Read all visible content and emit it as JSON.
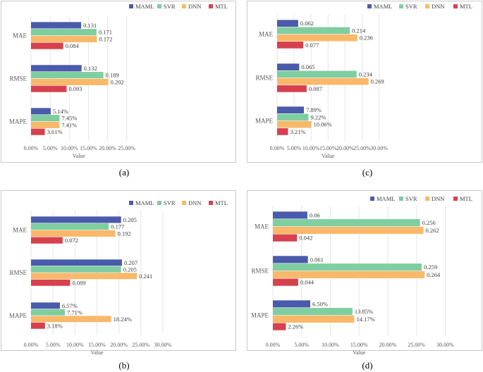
{
  "series_colors": {
    "MAML": "#4a5bab",
    "SVR": "#7fcea0",
    "DNN": "#f9b86a",
    "MTL": "#d7404d"
  },
  "chart_data": [
    {
      "type": "bar",
      "orientation": "horizontal",
      "caption": "(a)",
      "xlabel": "Value",
      "categories": [
        "MAE",
        "RMSE",
        "MAPE"
      ],
      "xlim": [
        0,
        0.25
      ],
      "ticks": [
        "0.00%",
        "5.00%",
        "10.00%",
        "15.00%",
        "20.00%",
        "25.00%"
      ],
      "series": [
        {
          "name": "MAML",
          "values": [
            0.131,
            0.132,
            0.0514
          ],
          "labels": [
            "0.131",
            "0.132",
            "5.14%"
          ]
        },
        {
          "name": "SVR",
          "values": [
            0.171,
            0.189,
            0.0745
          ],
          "labels": [
            "0.171",
            "0.189",
            "7.45%"
          ]
        },
        {
          "name": "DNN",
          "values": [
            0.172,
            0.202,
            0.0741
          ],
          "labels": [
            "0.172",
            "0.202",
            "7.41%"
          ]
        },
        {
          "name": "MTL",
          "values": [
            0.084,
            0.093,
            0.0361
          ],
          "labels": [
            "0.084",
            "0.093",
            "3.61%"
          ]
        }
      ]
    },
    {
      "type": "bar",
      "orientation": "horizontal",
      "caption": "(c)",
      "xlabel": "Value",
      "categories": [
        "MAE",
        "RMSE",
        "MAPE"
      ],
      "xlim": [
        0,
        0.3
      ],
      "ticks": [
        "0.00%",
        "5.00%",
        "10.00%",
        "15.00%",
        "20.00%",
        "25.00%",
        "30.00%"
      ],
      "series": [
        {
          "name": "MAML",
          "values": [
            0.062,
            0.065,
            0.0789
          ],
          "labels": [
            "0.062",
            "0.065",
            "7.89%"
          ]
        },
        {
          "name": "SVR",
          "values": [
            0.214,
            0.234,
            0.0922
          ],
          "labels": [
            "0.214",
            "0.234",
            "9.22%"
          ]
        },
        {
          "name": "DNN",
          "values": [
            0.236,
            0.269,
            0.1006
          ],
          "labels": [
            "0.236",
            "0.269",
            "10.06%"
          ]
        },
        {
          "name": "MTL",
          "values": [
            0.077,
            0.087,
            0.0321
          ],
          "labels": [
            "0.077",
            "0.087",
            "3.21%"
          ]
        }
      ]
    },
    {
      "type": "bar",
      "orientation": "horizontal",
      "caption": "(b)",
      "xlabel": "Value",
      "categories": [
        "MAE",
        "RMSE",
        "MAPE"
      ],
      "xlim": [
        0,
        0.3
      ],
      "ticks": [
        "0.00%",
        "5.00%",
        "10.00%",
        "15.00%",
        "20.00%",
        "25.00%",
        "30.00%"
      ],
      "series": [
        {
          "name": "MAML",
          "values": [
            0.205,
            0.207,
            0.0657
          ],
          "labels": [
            "0.205",
            "0.207",
            "6.57%"
          ]
        },
        {
          "name": "SVR",
          "values": [
            0.177,
            0.205,
            0.0771
          ],
          "labels": [
            "0.177",
            "0.205",
            "7.71%"
          ]
        },
        {
          "name": "DNN",
          "values": [
            0.192,
            0.241,
            0.1824
          ],
          "labels": [
            "0.192",
            "0.241",
            "18.24%"
          ]
        },
        {
          "name": "MTL",
          "values": [
            0.072,
            0.089,
            0.0318
          ],
          "labels": [
            "0.072",
            "0.089",
            "3.18%"
          ]
        }
      ]
    },
    {
      "type": "bar",
      "orientation": "horizontal",
      "caption": "(d)",
      "xlabel": "Value",
      "categories": [
        "MAE",
        "RMSE",
        "MAPE"
      ],
      "xlim": [
        0,
        0.3
      ],
      "ticks": [
        "0.00%",
        "5.00%",
        "10.00%",
        "15.00%",
        "20.00%",
        "25.00%",
        "30.00%"
      ],
      "series": [
        {
          "name": "MAML",
          "values": [
            0.06,
            0.061,
            0.065
          ],
          "labels": [
            "0.06",
            "0.061",
            "6.50%"
          ]
        },
        {
          "name": "SVR",
          "values": [
            0.256,
            0.259,
            0.1385
          ],
          "labels": [
            "0.256",
            "0.259",
            "13.85%"
          ]
        },
        {
          "name": "DNN",
          "values": [
            0.262,
            0.264,
            0.1417
          ],
          "labels": [
            "0.262",
            "0.264",
            "14.17%"
          ]
        },
        {
          "name": "MTL",
          "values": [
            0.042,
            0.044,
            0.0226
          ],
          "labels": [
            "0.042",
            "0.044",
            "2.26%"
          ]
        }
      ]
    }
  ]
}
